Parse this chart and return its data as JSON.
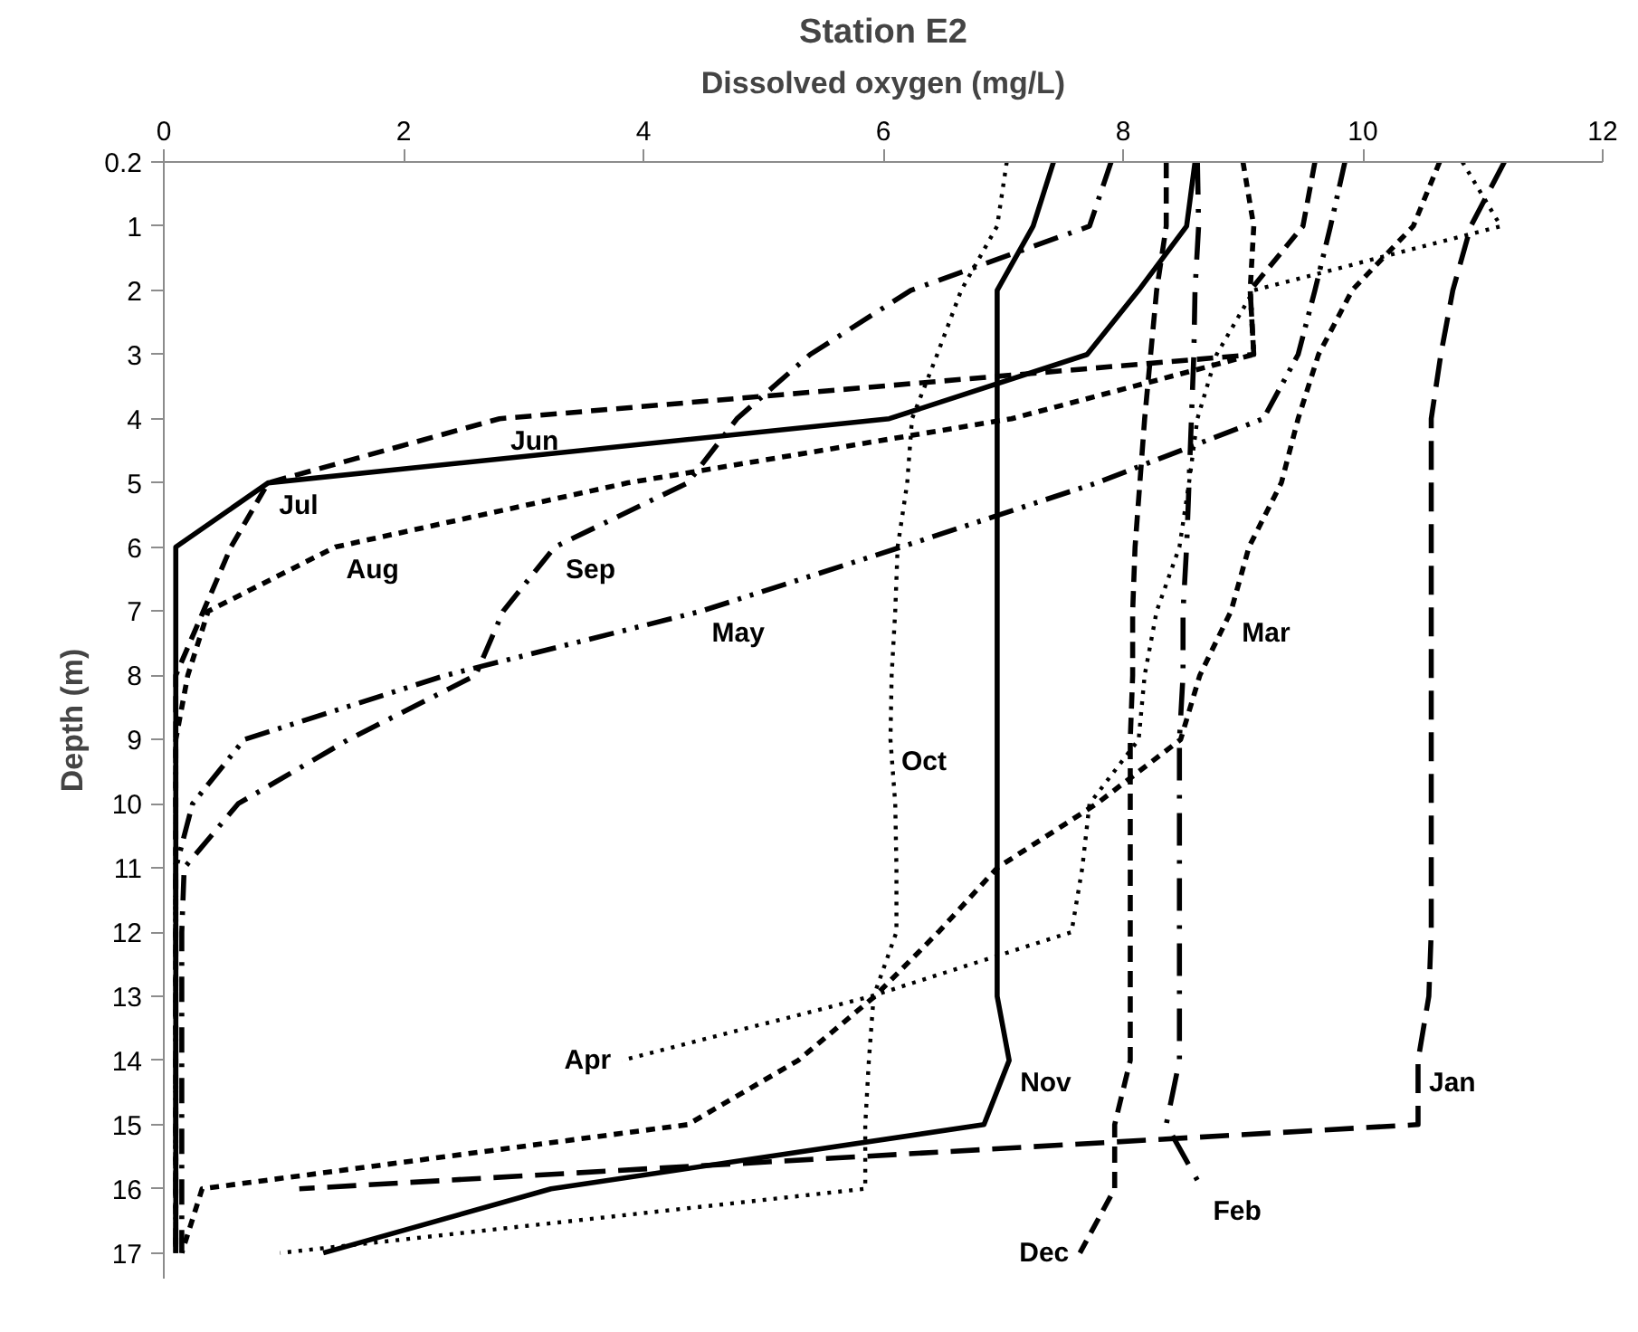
{
  "chart_data": {
    "type": "line",
    "orientation": "horizontal",
    "title": "Station E2",
    "xlabel": "Dissolved oxygen (mg/L)",
    "ylabel": "Depth (m)",
    "categories": [
      "0.2",
      "1",
      "2",
      "3",
      "4",
      "5",
      "6",
      "7",
      "8",
      "9",
      "10",
      "11",
      "12",
      "13",
      "14",
      "15",
      "16",
      "17"
    ],
    "xlim": [
      0,
      12
    ],
    "xticks": [
      0,
      2,
      4,
      6,
      8,
      10,
      12
    ],
    "grid": false,
    "series": [
      {
        "color": "#000000",
        "line_style": "longdash",
        "values": [
          11.18,
          10.9,
          10.75,
          10.65,
          10.57,
          10.57,
          10.57,
          10.57,
          10.57,
          10.57,
          10.57,
          10.57,
          10.57,
          10.55,
          10.46,
          10.46,
          1.13,
          null
        ]
      },
      {
        "color": "#000000",
        "line_style": "longdashdot",
        "values": [
          8.62,
          8.63,
          8.6,
          8.59,
          8.57,
          8.55,
          8.53,
          8.5,
          8.5,
          8.47,
          8.47,
          8.47,
          8.47,
          8.47,
          8.47,
          8.36,
          8.66,
          null
        ]
      },
      {
        "color": "#000000",
        "line_style": "shortdash",
        "values": [
          10.64,
          10.42,
          9.91,
          9.63,
          9.46,
          9.32,
          9.05,
          8.9,
          8.64,
          8.48,
          7.78,
          6.95,
          6.46,
          5.93,
          5.29,
          4.37,
          0.32,
          0.15
        ]
      },
      {
        "color": "#000000",
        "line_style": "dotted",
        "values": [
          10.83,
          11.15,
          9.09,
          8.78,
          8.62,
          8.55,
          8.47,
          8.28,
          8.18,
          8.13,
          7.72,
          7.66,
          7.57,
          5.9,
          3.82,
          null,
          null,
          null
        ]
      },
      {
        "color": "#000000",
        "line_style": "dashdotdot",
        "values": [
          9.85,
          9.73,
          9.6,
          9.46,
          9.17,
          7.78,
          6.15,
          4.48,
          2.35,
          0.67,
          0.24,
          0.1,
          0.1,
          0.1,
          0.1,
          0.1,
          0.1,
          0.1
        ]
      },
      {
        "color": "#000000",
        "line_style": "dashed",
        "values": [
          9.6,
          9.5,
          9.06,
          9.09,
          2.8,
          0.87,
          0.56,
          0.33,
          0.1,
          0.1,
          0.1,
          0.1,
          0.1,
          0.1,
          0.1,
          0.1,
          0.1,
          0.1
        ]
      },
      {
        "color": "#000000",
        "line_style": "solid",
        "values": [
          8.6,
          8.53,
          8.13,
          7.7,
          6.05,
          0.87,
          0.1,
          0.1,
          0.1,
          0.1,
          0.1,
          0.1,
          0.1,
          0.1,
          0.1,
          0.1,
          0.1,
          0.1
        ]
      },
      {
        "color": "#000000",
        "line_style": "shortdash",
        "values": [
          9.0,
          9.09,
          9.06,
          9.09,
          7.07,
          3.87,
          1.43,
          0.37,
          0.2,
          0.1,
          0.1,
          0.1,
          0.1,
          0.1,
          0.1,
          0.1,
          0.1,
          0.1
        ]
      },
      {
        "color": "#000000",
        "line_style": "dashdot",
        "values": [
          7.9,
          7.72,
          6.23,
          5.39,
          4.78,
          4.37,
          3.26,
          2.83,
          2.6,
          1.54,
          0.62,
          0.17,
          0.15,
          0.15,
          0.15,
          0.15,
          0.15,
          0.15
        ]
      },
      {
        "color": "#000000",
        "line_style": "dotted",
        "values": [
          7.03,
          6.95,
          6.65,
          6.45,
          6.24,
          6.2,
          6.12,
          6.1,
          6.07,
          6.06,
          6.1,
          6.11,
          6.11,
          5.92,
          5.88,
          5.85,
          5.85,
          0.97
        ]
      },
      {
        "color": "#000000",
        "line_style": "solid",
        "values": [
          7.42,
          7.25,
          6.95,
          6.95,
          6.95,
          6.95,
          6.95,
          6.95,
          6.95,
          6.95,
          6.95,
          6.95,
          6.95,
          6.95,
          7.05,
          6.84,
          3.23,
          1.33
        ]
      },
      {
        "color": "#000000",
        "line_style": "dashed",
        "values": [
          8.36,
          8.36,
          8.28,
          8.23,
          8.18,
          8.14,
          8.1,
          8.08,
          8.08,
          8.06,
          8.06,
          8.06,
          8.06,
          8.06,
          8.06,
          7.93,
          7.93,
          7.64
        ]
      }
    ],
    "annotations": [
      {
        "text": "Jan",
        "x": 10.46,
        "y": "14"
      },
      {
        "text": "Feb",
        "x": 8.66,
        "y": "16"
      },
      {
        "text": "Mar",
        "x": 8.9,
        "y": "7"
      },
      {
        "text": "Apr",
        "x": 3.82,
        "y": "14"
      },
      {
        "text": "May",
        "x": 4.48,
        "y": "7"
      },
      {
        "text": "Jun",
        "x": 2.8,
        "y": "4"
      },
      {
        "text": "Jul",
        "x": 0.87,
        "y": "5"
      },
      {
        "text": "Aug",
        "x": 1.43,
        "y": "6"
      },
      {
        "text": "Sep",
        "x": 3.26,
        "y": "6"
      },
      {
        "text": "Oct",
        "x": 6.06,
        "y": "9"
      },
      {
        "text": "Nov",
        "x": 7.05,
        "y": "14"
      },
      {
        "text": "Dec",
        "x": 7.64,
        "y": "17"
      }
    ]
  }
}
